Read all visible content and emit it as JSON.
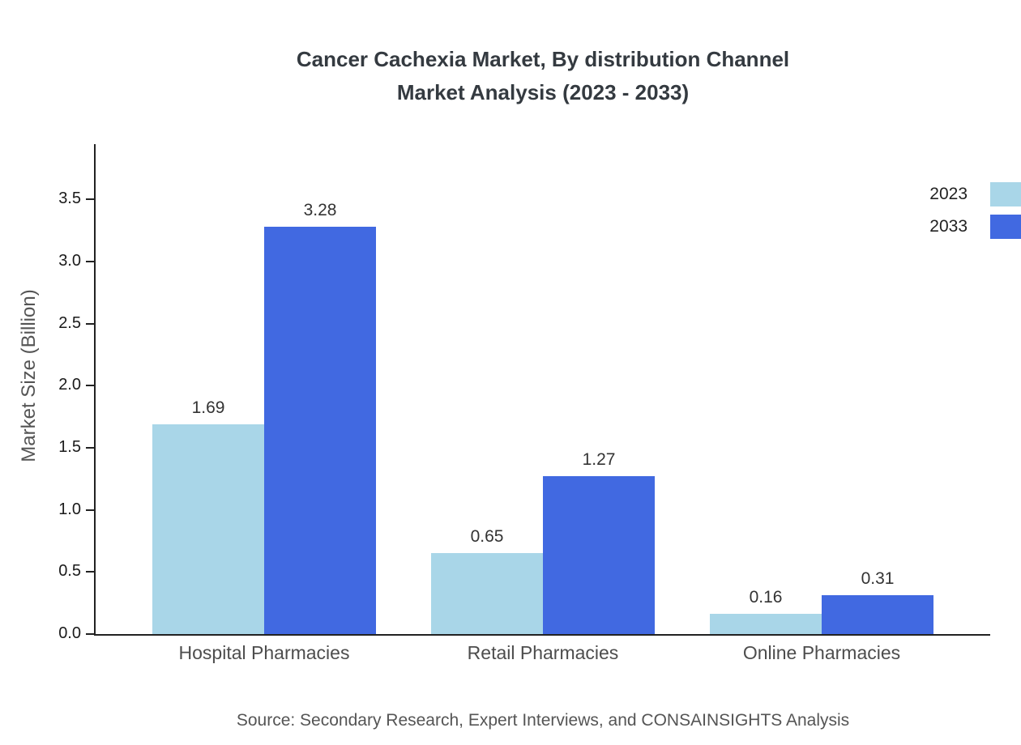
{
  "chart_data": {
    "type": "bar",
    "title_lines": [
      "Cancer Cachexia Market, By distribution Channel",
      "Market Analysis (2023 - 2033)"
    ],
    "title": "Cancer Cachexia Market, By distribution Channel Market Analysis (2023 - 2033)",
    "categories": [
      "Hospital Pharmacies",
      "Retail Pharmacies",
      "Online Pharmacies"
    ],
    "series": [
      {
        "name": "2023",
        "color": "#a9d6e8",
        "values": [
          1.69,
          0.65,
          0.16
        ]
      },
      {
        "name": "2033",
        "color": "#4169e1",
        "values": [
          3.28,
          1.27,
          0.31
        ]
      }
    ],
    "ylabel": "Market Size (Billion)",
    "xlabel": "",
    "ylim": [
      0,
      3.9
    ],
    "yticks": [
      "0.0",
      "0.5",
      "1.0",
      "1.5",
      "2.0",
      "2.5",
      "3.0",
      "3.5"
    ],
    "grid": false,
    "legend_position": "top-right",
    "source": "Source: Secondary Research, Expert Interviews, and CONSAINSIGHTS Analysis"
  }
}
